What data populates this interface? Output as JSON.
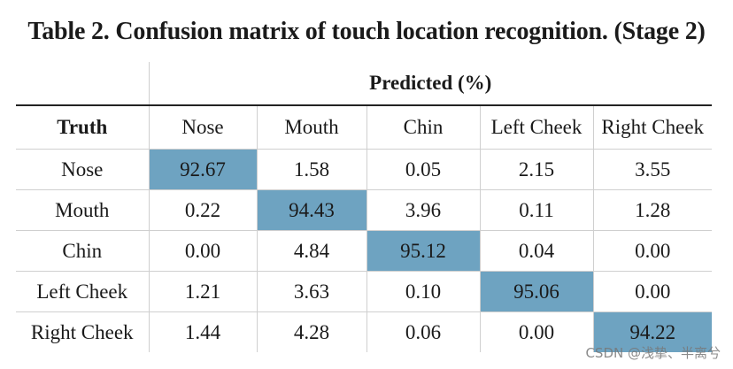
{
  "caption": "Table 2. Confusion matrix of touch location recognition. (Stage 2)",
  "predicted_label": "Predicted (%)",
  "truth_label": "Truth",
  "columns": [
    "Nose",
    "Mouth",
    "Chin",
    "Left Cheek",
    "Right Cheek"
  ],
  "rows": [
    {
      "label": "Nose",
      "values": [
        "92.67",
        "1.58",
        "0.05",
        "2.15",
        "3.55"
      ]
    },
    {
      "label": "Mouth",
      "values": [
        "0.22",
        "94.43",
        "3.96",
        "0.11",
        "1.28"
      ]
    },
    {
      "label": "Chin",
      "values": [
        "0.00",
        "4.84",
        "95.12",
        "0.04",
        "0.00"
      ]
    },
    {
      "label": "Left Cheek",
      "values": [
        "1.21",
        "3.63",
        "0.10",
        "95.06",
        "0.00"
      ]
    },
    {
      "label": "Right Cheek",
      "values": [
        "1.44",
        "4.28",
        "0.06",
        "0.00",
        "94.22"
      ]
    }
  ],
  "highlight_color": "#6ea3c1",
  "watermark": "CSDN @浅挚、半离兮"
}
